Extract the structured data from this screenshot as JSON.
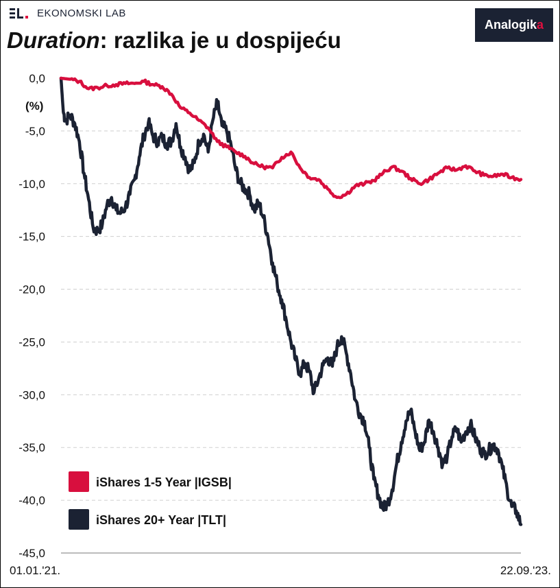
{
  "brand": {
    "name": "EKONOMSKI LAB",
    "logo": "Analogik",
    "logo_accent": "a"
  },
  "title": {
    "italic": "Duration",
    "rest": ": razlika je u dospijeću"
  },
  "colors": {
    "igsb": "#d80f3e",
    "tlt": "#1b2233",
    "grid": "#cfcfcf"
  },
  "chart_data": {
    "type": "line",
    "title": "Duration: razlika je u dospijeću",
    "ylabel": "(%)",
    "xlabel": "",
    "x_start_label": "01.01.'21.",
    "x_end_label": "22.09.'23.",
    "ylim": [
      -45,
      0
    ],
    "yticks": [
      "0,0",
      "-5,0",
      "-10,0",
      "-15,0",
      "-20,0",
      "-25,0",
      "-30,0",
      "-35,0",
      "-40,0",
      "-45,0"
    ],
    "grid": true,
    "legend_position": "bottom-left",
    "series": [
      {
        "name": "iShares 1-5 Year |IGSB|",
        "key": "igsb",
        "values": [
          [
            0,
            0
          ],
          [
            2,
            -0.1
          ],
          [
            4,
            -0.3
          ],
          [
            6,
            -1
          ],
          [
            8,
            -0.9
          ],
          [
            10,
            -0.7
          ],
          [
            12,
            -0.6
          ],
          [
            14,
            -0.5
          ],
          [
            16,
            -0.5
          ],
          [
            18,
            -0.3
          ],
          [
            20,
            -0.6
          ],
          [
            22,
            -0.8
          ],
          [
            24,
            -1.5
          ],
          [
            26,
            -2.8
          ],
          [
            28,
            -3.3
          ],
          [
            30,
            -4
          ],
          [
            32,
            -4.7
          ],
          [
            34,
            -6
          ],
          [
            36,
            -6.5
          ],
          [
            38,
            -7
          ],
          [
            40,
            -7.4
          ],
          [
            42,
            -8.1
          ],
          [
            44,
            -8.4
          ],
          [
            46,
            -8.5
          ],
          [
            48,
            -7.5
          ],
          [
            50,
            -7
          ],
          [
            52,
            -8.5
          ],
          [
            54,
            -9.4
          ],
          [
            56,
            -9.6
          ],
          [
            58,
            -10.5
          ],
          [
            60,
            -11.3
          ],
          [
            62,
            -11
          ],
          [
            64,
            -10.2
          ],
          [
            66,
            -10
          ],
          [
            68,
            -9.7
          ],
          [
            70,
            -9
          ],
          [
            72,
            -8.4
          ],
          [
            74,
            -8.8
          ],
          [
            76,
            -9.5
          ],
          [
            78,
            -10
          ],
          [
            80,
            -9.6
          ],
          [
            82,
            -9
          ],
          [
            84,
            -8.5
          ],
          [
            86,
            -8.7
          ],
          [
            88,
            -8.3
          ],
          [
            90,
            -8.8
          ],
          [
            92,
            -9.2
          ],
          [
            94,
            -9.3
          ],
          [
            96,
            -9.1
          ],
          [
            98,
            -9.4
          ],
          [
            100,
            -9.6
          ]
        ]
      },
      {
        "name": "iShares 20+ Year |TLT|",
        "key": "tlt",
        "values": [
          [
            0,
            0
          ],
          [
            0.5,
            -3.2
          ],
          [
            1,
            -4
          ],
          [
            2,
            -3.5
          ],
          [
            3,
            -4.3
          ],
          [
            4,
            -6
          ],
          [
            5,
            -9
          ],
          [
            6,
            -11.5
          ],
          [
            7,
            -14.2
          ],
          [
            8,
            -14.5
          ],
          [
            9,
            -13.8
          ],
          [
            10,
            -12
          ],
          [
            11,
            -11.3
          ],
          [
            12,
            -12.5
          ],
          [
            13,
            -12.8
          ],
          [
            14,
            -12.2
          ],
          [
            15,
            -11
          ],
          [
            16,
            -9.6
          ],
          [
            17,
            -7.5
          ],
          [
            18,
            -5.5
          ],
          [
            19,
            -4.2
          ],
          [
            20,
            -5.5
          ],
          [
            21,
            -6
          ],
          [
            22,
            -5.6
          ],
          [
            23,
            -6.2
          ],
          [
            24,
            -6
          ],
          [
            25,
            -4.3
          ],
          [
            26,
            -6.5
          ],
          [
            27,
            -7.5
          ],
          [
            28,
            -8.8
          ],
          [
            29,
            -8
          ],
          [
            30,
            -6
          ],
          [
            31,
            -5.3
          ],
          [
            32,
            -7
          ],
          [
            33,
            -4
          ],
          [
            34,
            -2.3
          ],
          [
            35,
            -4.5
          ],
          [
            36,
            -5
          ],
          [
            37,
            -6.4
          ],
          [
            38,
            -8.7
          ],
          [
            39,
            -10
          ],
          [
            40,
            -10.5
          ],
          [
            41,
            -11
          ],
          [
            42,
            -12.5
          ],
          [
            43,
            -11.8
          ],
          [
            44,
            -13.2
          ],
          [
            45,
            -15
          ],
          [
            46,
            -17.5
          ],
          [
            47,
            -19.5
          ],
          [
            48,
            -21
          ],
          [
            49,
            -23
          ],
          [
            50,
            -25
          ],
          [
            51,
            -26.7
          ],
          [
            52,
            -28
          ],
          [
            53,
            -27
          ],
          [
            54,
            -27.8
          ],
          [
            55,
            -29.8
          ],
          [
            56,
            -28.5
          ],
          [
            57,
            -27.2
          ],
          [
            58,
            -26.5
          ],
          [
            59,
            -27.3
          ],
          [
            60,
            -25.5
          ],
          [
            61,
            -24.5
          ],
          [
            62,
            -26
          ],
          [
            63,
            -28
          ],
          [
            64,
            -30.5
          ],
          [
            65,
            -31.8
          ],
          [
            66,
            -32.5
          ],
          [
            67,
            -35
          ],
          [
            68,
            -38
          ],
          [
            69,
            -39.5
          ],
          [
            70,
            -40.8
          ],
          [
            71,
            -40.3
          ],
          [
            72,
            -39
          ],
          [
            73,
            -36.5
          ],
          [
            74,
            -34.5
          ],
          [
            75,
            -32.5
          ],
          [
            76,
            -31.5
          ],
          [
            77,
            -33.5
          ],
          [
            78,
            -35.3
          ],
          [
            79,
            -34.5
          ],
          [
            80,
            -32.4
          ],
          [
            81,
            -33.5
          ],
          [
            82,
            -35
          ],
          [
            83,
            -36.6
          ],
          [
            84,
            -35.8
          ],
          [
            85,
            -34
          ],
          [
            86,
            -33.2
          ],
          [
            87,
            -34.5
          ],
          [
            88,
            -33.5
          ],
          [
            89,
            -32.8
          ],
          [
            90,
            -34
          ],
          [
            91,
            -35
          ],
          [
            92,
            -35.6
          ],
          [
            93,
            -35.3
          ],
          [
            94,
            -34.7
          ],
          [
            95,
            -35.2
          ],
          [
            96,
            -37
          ],
          [
            97,
            -39
          ],
          [
            98,
            -40.6
          ],
          [
            99,
            -41
          ],
          [
            100,
            -42.3
          ]
        ]
      }
    ]
  }
}
